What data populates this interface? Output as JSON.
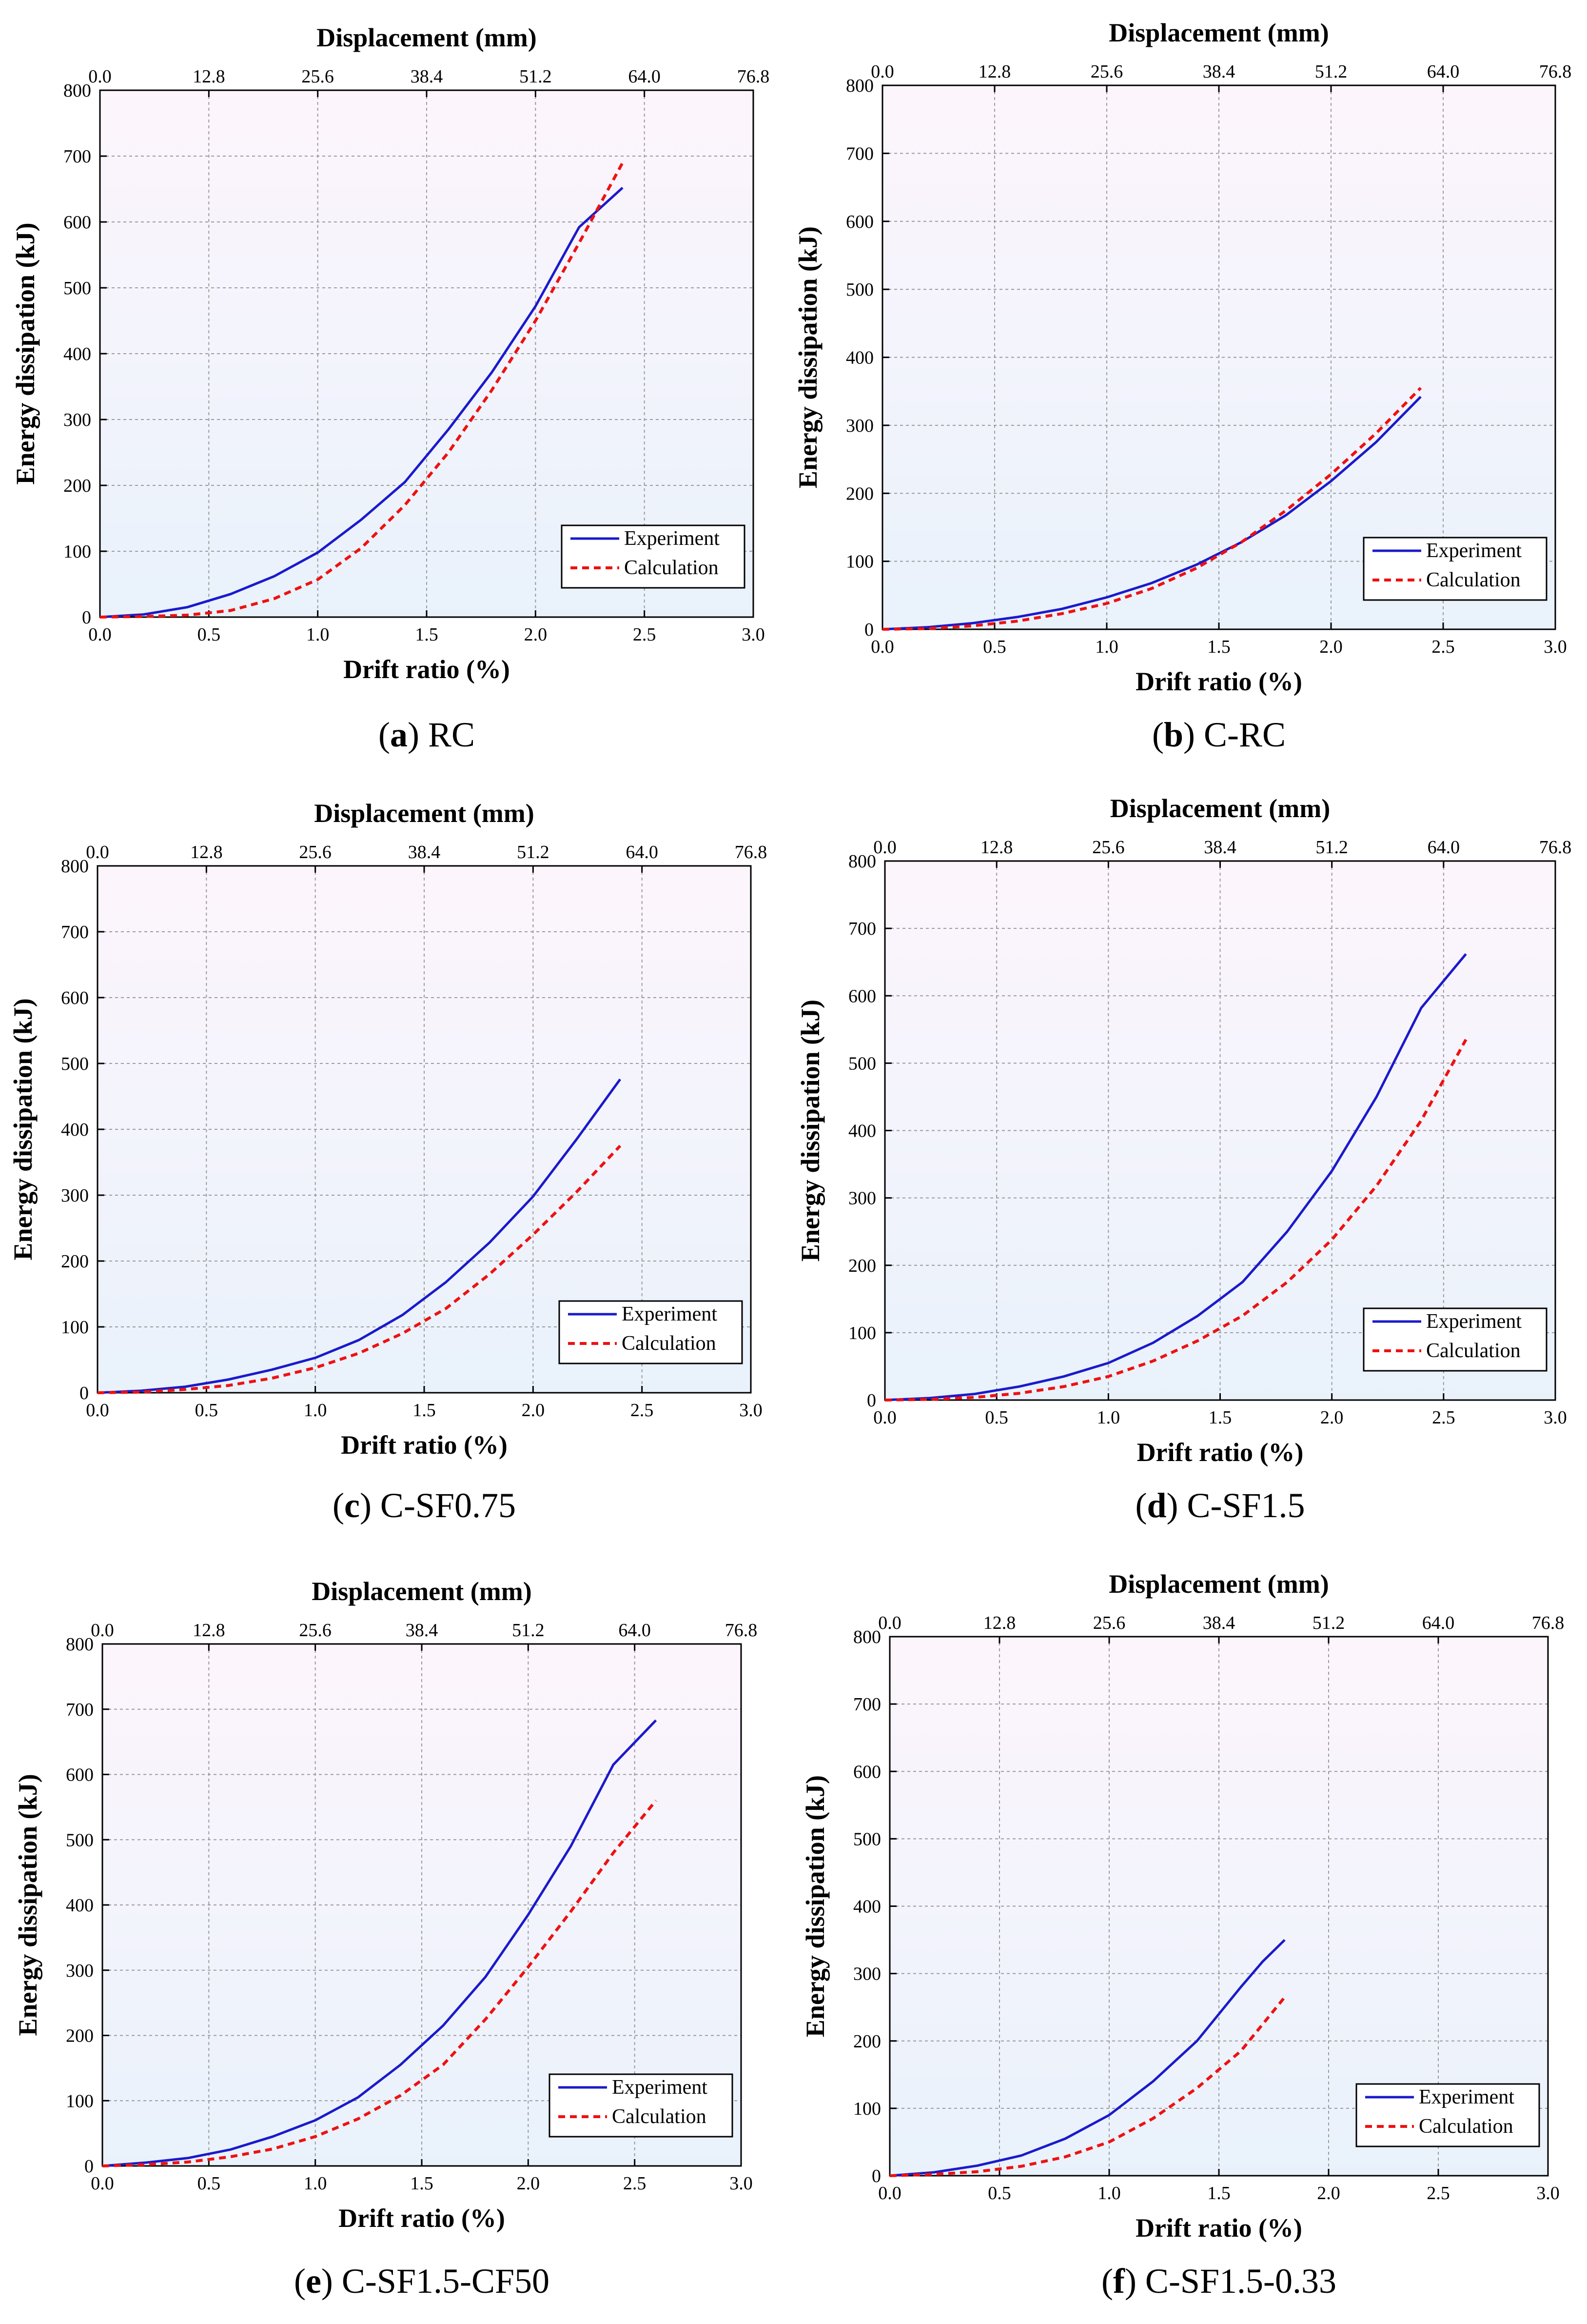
{
  "colors": {
    "experiment": "#1a1acc",
    "calculation": "#ee1111",
    "bg_top": "#fdf5fc",
    "bg_bottom": "#e9f2fb",
    "grid": "#9a9a9a"
  },
  "legend_labels": [
    "Experiment",
    "Calculation"
  ],
  "chart_data": [
    {
      "type": "line",
      "caption_letter": "a",
      "caption_name": "RC",
      "xlabel": "Drift ratio (%)",
      "x2label": "Displacement (mm)",
      "ylabel": "Energy dissipation (kJ)",
      "xlim": [
        0,
        3.0
      ],
      "ylim": [
        0,
        800
      ],
      "xticks": [
        "0.0",
        "0.5",
        "1.0",
        "1.5",
        "2.0",
        "2.5",
        "3.0"
      ],
      "x2ticks": [
        "0.0",
        "12.8",
        "25.6",
        "38.4",
        "51.2",
        "64.0",
        "76.8"
      ],
      "yticks": [
        "0",
        "100",
        "200",
        "300",
        "400",
        "500",
        "600",
        "700",
        "800"
      ],
      "grid": true,
      "legend_position": "bottom-right",
      "series": [
        {
          "name": "Experiment",
          "x": [
            0,
            0.2,
            0.4,
            0.6,
            0.8,
            1.0,
            1.2,
            1.4,
            1.6,
            1.8,
            2.0,
            2.2,
            2.4
          ],
          "y": [
            0,
            4,
            15,
            35,
            62,
            98,
            148,
            205,
            285,
            372,
            472,
            592,
            652
          ]
        },
        {
          "name": "Calculation",
          "x": [
            0,
            0.2,
            0.4,
            0.6,
            0.8,
            1.0,
            1.2,
            1.4,
            1.6,
            1.8,
            2.0,
            2.2,
            2.4
          ],
          "y": [
            0,
            1,
            3,
            10,
            28,
            57,
            105,
            170,
            250,
            345,
            450,
            568,
            690
          ]
        }
      ]
    },
    {
      "type": "line",
      "caption_letter": "b",
      "caption_name": "C-RC",
      "xlabel": "Drift ratio (%)",
      "x2label": "Displacement (mm)",
      "ylabel": "Energy dissipation (kJ)",
      "xlim": [
        0,
        3.0
      ],
      "ylim": [
        0,
        800
      ],
      "xticks": [
        "0.0",
        "0.5",
        "1.0",
        "1.5",
        "2.0",
        "2.5",
        "3.0"
      ],
      "x2ticks": [
        "0.0",
        "12.8",
        "25.6",
        "38.4",
        "51.2",
        "64.0",
        "76.8"
      ],
      "yticks": [
        "0",
        "100",
        "200",
        "300",
        "400",
        "500",
        "600",
        "700",
        "800"
      ],
      "grid": true,
      "legend_position": "bottom-right",
      "series": [
        {
          "name": "Experiment",
          "x": [
            0,
            0.2,
            0.4,
            0.6,
            0.8,
            1.0,
            1.2,
            1.4,
            1.6,
            1.8,
            2.0,
            2.2,
            2.4
          ],
          "y": [
            0,
            3,
            9,
            18,
            30,
            47,
            68,
            95,
            128,
            168,
            218,
            275,
            342
          ]
        },
        {
          "name": "Calculation",
          "x": [
            0,
            0.2,
            0.4,
            0.6,
            0.8,
            1.0,
            1.2,
            1.4,
            1.6,
            1.8,
            2.0,
            2.2,
            2.4
          ],
          "y": [
            0,
            1,
            5,
            12,
            23,
            38,
            60,
            90,
            128,
            175,
            228,
            288,
            355
          ]
        }
      ]
    },
    {
      "type": "line",
      "caption_letter": "c",
      "caption_name": "C-SF0.75",
      "xlabel": "Drift ratio (%)",
      "x2label": "Displacement (mm)",
      "ylabel": "Energy dissipation (kJ)",
      "xlim": [
        0,
        3.0
      ],
      "ylim": [
        0,
        800
      ],
      "xticks": [
        "0.0",
        "0.5",
        "1.0",
        "1.5",
        "2.0",
        "2.5",
        "3.0"
      ],
      "x2ticks": [
        "0.0",
        "12.8",
        "25.6",
        "38.4",
        "51.2",
        "64.0",
        "76.8"
      ],
      "yticks": [
        "0",
        "100",
        "200",
        "300",
        "400",
        "500",
        "600",
        "700",
        "800"
      ],
      "grid": true,
      "legend_position": "bottom-right",
      "series": [
        {
          "name": "Experiment",
          "x": [
            0,
            0.2,
            0.4,
            0.6,
            0.8,
            1.0,
            1.2,
            1.4,
            1.6,
            1.8,
            2.0,
            2.2,
            2.4
          ],
          "y": [
            0,
            3,
            9,
            20,
            35,
            53,
            80,
            118,
            168,
            228,
            298,
            385,
            476
          ]
        },
        {
          "name": "Calculation",
          "x": [
            0,
            0.2,
            0.4,
            0.6,
            0.8,
            1.0,
            1.2,
            1.4,
            1.6,
            1.8,
            2.0,
            2.2,
            2.4
          ],
          "y": [
            0,
            1,
            5,
            11,
            22,
            38,
            60,
            90,
            128,
            180,
            240,
            305,
            375
          ]
        }
      ]
    },
    {
      "type": "line",
      "caption_letter": "d",
      "caption_name": "C-SF1.5",
      "xlabel": "Drift ratio (%)",
      "x2label": "Displacement (mm)",
      "ylabel": "Energy dissipation (kJ)",
      "xlim": [
        0,
        3.0
      ],
      "ylim": [
        0,
        800
      ],
      "xticks": [
        "0.0",
        "0.5",
        "1.0",
        "1.5",
        "2.0",
        "2.5",
        "3.0"
      ],
      "x2ticks": [
        "0.0",
        "12.8",
        "25.6",
        "38.4",
        "51.2",
        "64.0",
        "76.8"
      ],
      "yticks": [
        "0",
        "100",
        "200",
        "300",
        "400",
        "500",
        "600",
        "700",
        "800"
      ],
      "grid": true,
      "legend_position": "bottom-right",
      "series": [
        {
          "name": "Experiment",
          "x": [
            0,
            0.2,
            0.4,
            0.6,
            0.8,
            1.0,
            1.2,
            1.4,
            1.6,
            1.8,
            2.0,
            2.2,
            2.4,
            2.6
          ],
          "y": [
            0,
            3,
            9,
            20,
            35,
            55,
            85,
            125,
            175,
            250,
            340,
            450,
            582,
            662
          ]
        },
        {
          "name": "Calculation",
          "x": [
            0,
            0.2,
            0.4,
            0.6,
            0.8,
            1.0,
            1.2,
            1.4,
            1.6,
            1.8,
            2.0,
            2.2,
            2.4,
            2.6
          ],
          "y": [
            0,
            1,
            4,
            10,
            20,
            35,
            58,
            88,
            125,
            175,
            238,
            318,
            415,
            535
          ]
        }
      ]
    },
    {
      "type": "line",
      "caption_letter": "e",
      "caption_name": "C-SF1.5-CF50",
      "xlabel": "Drift ratio (%)",
      "x2label": "Displacement (mm)",
      "ylabel": "Energy dissipation (kJ)",
      "xlim": [
        0,
        3.0
      ],
      "ylim": [
        0,
        800
      ],
      "xticks": [
        "0.0",
        "0.5",
        "1.0",
        "1.5",
        "2.0",
        "2.5",
        "3.0"
      ],
      "x2ticks": [
        "0.0",
        "12.8",
        "25.6",
        "38.4",
        "51.2",
        "64.0",
        "76.8"
      ],
      "yticks": [
        "0",
        "100",
        "200",
        "300",
        "400",
        "500",
        "600",
        "700",
        "800"
      ],
      "grid": true,
      "legend_position": "bottom-right",
      "series": [
        {
          "name": "Experiment",
          "x": [
            0,
            0.2,
            0.4,
            0.6,
            0.8,
            1.0,
            1.2,
            1.4,
            1.6,
            1.8,
            2.0,
            2.2,
            2.4,
            2.6
          ],
          "y": [
            0,
            5,
            12,
            25,
            45,
            70,
            105,
            155,
            215,
            290,
            385,
            490,
            615,
            683
          ]
        },
        {
          "name": "Calculation",
          "x": [
            0,
            0.2,
            0.4,
            0.6,
            0.8,
            1.0,
            1.2,
            1.4,
            1.6,
            1.8,
            2.0,
            2.2,
            2.4,
            2.6
          ],
          "y": [
            0,
            2,
            6,
            14,
            26,
            45,
            72,
            108,
            155,
            225,
            305,
            390,
            480,
            560
          ]
        }
      ]
    },
    {
      "type": "line",
      "caption_letter": "f",
      "caption_name": "C-SF1.5-0.33",
      "xlabel": "Drift ratio (%)",
      "x2label": "Displacement (mm)",
      "ylabel": "Energy dissipation (kJ)",
      "xlim": [
        0,
        3.0
      ],
      "ylim": [
        0,
        800
      ],
      "xticks": [
        "0.0",
        "0.5",
        "1.0",
        "1.5",
        "2.0",
        "2.5",
        "3.0"
      ],
      "x2ticks": [
        "0.0",
        "12.8",
        "25.6",
        "38.4",
        "51.2",
        "64.0",
        "76.8"
      ],
      "yticks": [
        "0",
        "100",
        "200",
        "300",
        "400",
        "500",
        "600",
        "700",
        "800"
      ],
      "grid": true,
      "legend_position": "bottom-right",
      "series": [
        {
          "name": "Experiment",
          "x": [
            0,
            0.2,
            0.4,
            0.6,
            0.8,
            1.0,
            1.2,
            1.4,
            1.6,
            1.7,
            1.8
          ],
          "y": [
            0,
            5,
            15,
            30,
            55,
            90,
            140,
            200,
            280,
            318,
            350
          ]
        },
        {
          "name": "Calculation",
          "x": [
            0,
            0.2,
            0.4,
            0.6,
            0.8,
            1.0,
            1.2,
            1.4,
            1.6,
            1.8
          ],
          "y": [
            0,
            2,
            6,
            14,
            28,
            50,
            85,
            130,
            185,
            265
          ]
        }
      ]
    }
  ]
}
